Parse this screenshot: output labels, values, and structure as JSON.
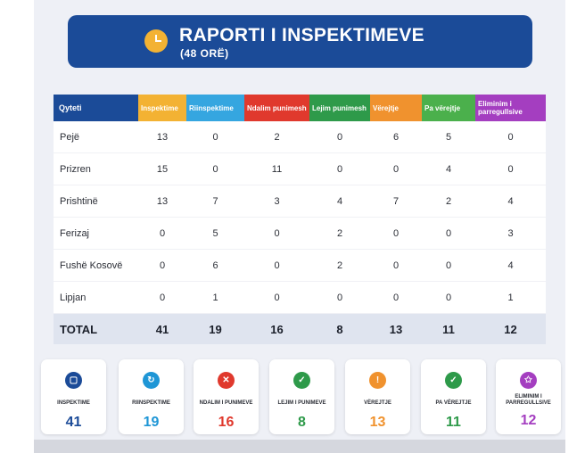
{
  "header": {
    "title": "RAPORTI I INSPEKTIMEVE",
    "subtitle": "(48 ORË)",
    "icon": "clock-icon"
  },
  "table": {
    "columns": [
      {
        "label": "Qyteti",
        "color": "#1b4b98"
      },
      {
        "label": "Inspektime",
        "color": "#f3b233"
      },
      {
        "label": "Riinspektime",
        "color": "#35a6e0"
      },
      {
        "label": "Ndalim punimesh",
        "color": "#e0392d"
      },
      {
        "label": "Lejim punimesh",
        "color": "#2e9a4a"
      },
      {
        "label": "Vërejtje",
        "color": "#f0922e"
      },
      {
        "label": "Pa vërejtje",
        "color": "#4bb04c"
      },
      {
        "label": "Eliminim i parregullsive",
        "color": "#a43ec0"
      }
    ],
    "rows": [
      {
        "city": "Pejë",
        "values": [
          "13",
          "0",
          "2",
          "0",
          "6",
          "5",
          "0"
        ]
      },
      {
        "city": "Prizren",
        "values": [
          "15",
          "0",
          "11",
          "0",
          "0",
          "4",
          "0"
        ]
      },
      {
        "city": "Prishtinë",
        "values": [
          "13",
          "7",
          "3",
          "4",
          "7",
          "2",
          "4"
        ]
      },
      {
        "city": "Ferizaj",
        "values": [
          "0",
          "5",
          "0",
          "2",
          "0",
          "0",
          "3"
        ]
      },
      {
        "city": "Fushë Kosovë",
        "values": [
          "0",
          "6",
          "0",
          "2",
          "0",
          "0",
          "4"
        ]
      },
      {
        "city": "Lipjan",
        "values": [
          "0",
          "1",
          "0",
          "0",
          "0",
          "0",
          "1"
        ]
      }
    ],
    "total": {
      "label": "TOTAL",
      "values": [
        "41",
        "19",
        "16",
        "8",
        "13",
        "11",
        "12"
      ]
    }
  },
  "cards": [
    {
      "label": "INSPEKTIME",
      "value": "41",
      "color": "#1b4b98",
      "icon": "clipboard-icon",
      "glyph": "▢"
    },
    {
      "label": "RIINSPEKTIME",
      "value": "19",
      "color": "#1e96d6",
      "icon": "refresh-icon",
      "glyph": "↻"
    },
    {
      "label": "NDALIM I PUNIMEVE",
      "value": "16",
      "color": "#e0392d",
      "icon": "stop-icon",
      "glyph": "✕"
    },
    {
      "label": "LEJIM I PUNIMEVE",
      "value": "8",
      "color": "#2e9a4a",
      "icon": "check-icon",
      "glyph": "✓"
    },
    {
      "label": "VËREJTJE",
      "value": "13",
      "color": "#f0922e",
      "icon": "warning-icon",
      "glyph": "!"
    },
    {
      "label": "PA VËREJTJE",
      "value": "11",
      "color": "#2e9a4a",
      "icon": "check-icon",
      "glyph": "✓"
    },
    {
      "label": "ELIMINIM I PARREGULLSIVE",
      "value": "12",
      "color": "#a43ec0",
      "icon": "star-icon",
      "glyph": "✩"
    }
  ]
}
